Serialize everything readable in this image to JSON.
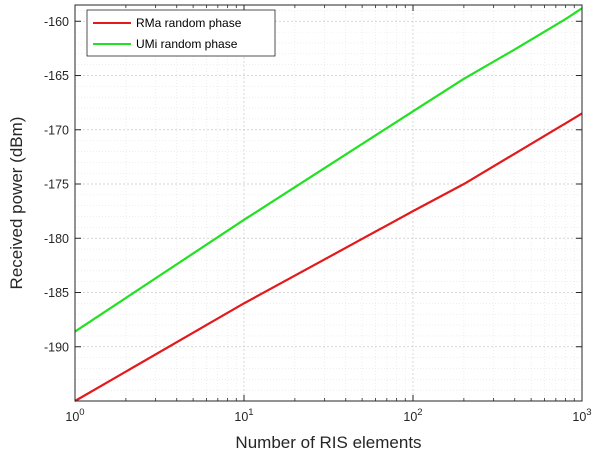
{
  "chart_data": {
    "type": "line",
    "xlabel": "Number of RIS elements",
    "ylabel": "Received power (dBm)",
    "xscale": "log",
    "xlim": [
      1,
      1000
    ],
    "ylim": [
      -195,
      -158.5
    ],
    "grid": "major and minor",
    "legend_position": "top-left",
    "xticks": [
      {
        "base": "10",
        "exp": "0"
      },
      {
        "base": "10",
        "exp": "1"
      },
      {
        "base": "10",
        "exp": "2"
      },
      {
        "base": "10",
        "exp": "3"
      }
    ],
    "yticks": [
      -190,
      -185,
      -180,
      -175,
      -170,
      -165,
      -160
    ],
    "ytick_labels": [
      "-190",
      "-185",
      "-180",
      "-175",
      "-170",
      "-165",
      "-160"
    ],
    "series": [
      {
        "name": "RMa random phase",
        "color": "#e31a1c",
        "x": [
          1,
          10,
          100,
          200,
          400,
          800,
          1000
        ],
        "y": [
          -195,
          -186,
          -177.5,
          -175,
          -172.2,
          -169.4,
          -168.5
        ]
      },
      {
        "name": "UMi random phase",
        "color": "#22e022",
        "x": [
          1,
          10,
          100,
          200,
          400,
          800,
          1000
        ],
        "y": [
          -188.6,
          -178.3,
          -168.3,
          -165.3,
          -162.6,
          -159.8,
          -158.8
        ]
      }
    ]
  }
}
